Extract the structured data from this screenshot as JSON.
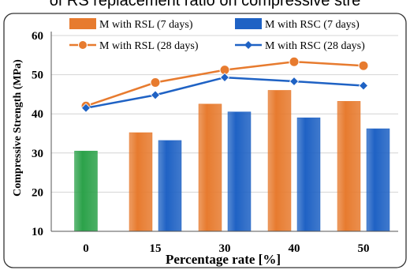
{
  "header_text": "of RS replacement ratio on compressive stre",
  "colors": {
    "orange": "#E77B2F",
    "blue": "#1F62C4",
    "green": "#2CA24A",
    "grid": "#D4D4D4"
  },
  "chart_data": {
    "type": "bar",
    "title": "",
    "xlabel": "Percentage rate [%]",
    "ylabel": "Compressive Strength (MPa)",
    "ylim": [
      10,
      60
    ],
    "yticks": [
      10,
      20,
      30,
      40,
      50,
      60
    ],
    "grid": true,
    "legend_position": "top",
    "categories": [
      "0",
      "15",
      "30",
      "40",
      "50"
    ],
    "control_bar": {
      "category": "0",
      "value": 30.5,
      "color": "#2CA24A"
    },
    "bar_series": [
      {
        "name": "M with RSL (7 days)",
        "color": "#E77B2F",
        "values": [
          null,
          35.2,
          42.5,
          46.0,
          43.2
        ]
      },
      {
        "name": "M with RSC (7 days)",
        "color": "#1F62C4",
        "values": [
          null,
          33.2,
          40.5,
          39.0,
          36.2
        ]
      }
    ],
    "line_series": [
      {
        "name": "M with RSL (28 days)",
        "color": "#E77B2F",
        "marker": "circle",
        "values": [
          42.0,
          48.0,
          51.2,
          53.3,
          52.3
        ]
      },
      {
        "name": "M with RSC (28 days)",
        "color": "#1F62C4",
        "marker": "diamond",
        "values": [
          41.5,
          44.8,
          49.3,
          48.3,
          47.2
        ]
      }
    ]
  }
}
